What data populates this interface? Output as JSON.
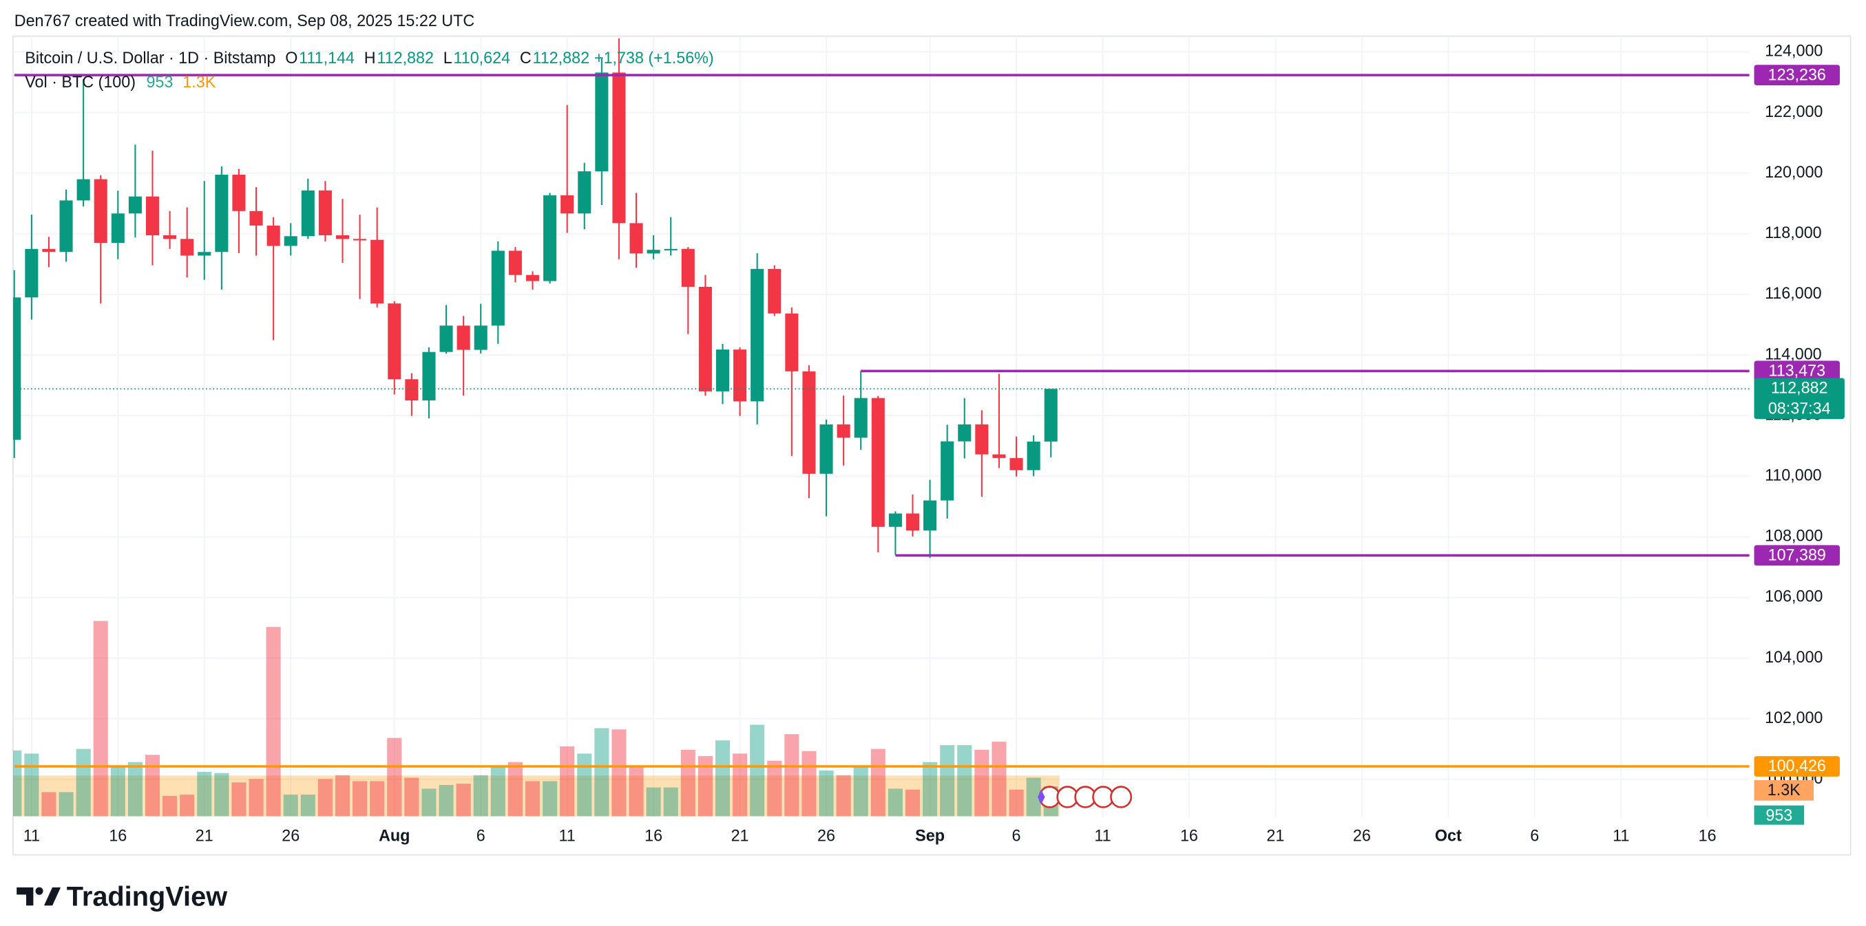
{
  "chart_data": {
    "type": "candlestick",
    "header": "Den767 created with TradingView.com, Sep 08, 2025 15:22 UTC",
    "title": "Bitcoin / U.S. Dollar · 1D · Bitstamp",
    "ohlc": [
      {
        "name": "O",
        "value": 111144,
        "label": "111,144"
      },
      {
        "name": "H",
        "value": 112882,
        "label": "112,882"
      },
      {
        "name": "L",
        "value": 110624,
        "label": "110,624"
      },
      {
        "name": "C",
        "value": 112882,
        "label": "112,882"
      }
    ],
    "change": "+1,738 (+1.56%)",
    "volume_title": "Vol · BTC (100)",
    "volume_last": {
      "value": 953,
      "label": "953"
    },
    "volume_ma": {
      "value": 1300,
      "label": "1.3K"
    },
    "brand": "TradingView",
    "up_color": "#089981",
    "down_color": "#f23645",
    "open": [
      111200,
      115900,
      117500,
      117400,
      119100,
      119800,
      117700,
      118670,
      119230,
      117950,
      117830,
      117280,
      117400,
      119950,
      118750,
      118270,
      117600,
      117920,
      119430,
      117950,
      117830,
      117800,
      115700,
      113200,
      112500,
      114100,
      114970,
      114170,
      114970,
      117440,
      116640,
      116440,
      119270,
      118670,
      120060,
      123320,
      118350,
      117350,
      117470,
      117500,
      116250,
      112800,
      114180,
      112470,
      116840,
      115370,
      113460,
      110080,
      111710,
      111270,
      112580,
      108330,
      108770,
      108210,
      109200,
      111150,
      111710,
      110720,
      110600,
      110200,
      111144
    ],
    "high": [
      116800,
      118630,
      117900,
      119460,
      123100,
      119930,
      119420,
      120940,
      120740,
      118750,
      118870,
      119740,
      120220,
      120140,
      119540,
      118550,
      118350,
      119820,
      119740,
      119150,
      118630,
      118870,
      115770,
      113400,
      114250,
      115650,
      115290,
      115690,
      117750,
      117560,
      116760,
      119350,
      122250,
      120340,
      123800,
      124450,
      119350,
      117950,
      118550,
      117560,
      116640,
      114370,
      114250,
      117360,
      116960,
      115570,
      113660,
      111870,
      112660,
      113470,
      112650,
      108840,
      109400,
      109880,
      111700,
      112580,
      112180,
      113380,
      111310,
      111350,
      112882
    ],
    "low": [
      110600,
      115170,
      116900,
      117080,
      118900,
      115700,
      117160,
      117880,
      116960,
      117500,
      116560,
      116480,
      116160,
      117360,
      117280,
      114490,
      117280,
      117830,
      117750,
      117040,
      115850,
      115570,
      112700,
      111990,
      111910,
      114050,
      112660,
      114050,
      114370,
      116400,
      116160,
      116360,
      118030,
      118150,
      118950,
      117160,
      116880,
      117160,
      117280,
      114690,
      112660,
      112380,
      111990,
      111710,
      115290,
      110670,
      109280,
      108680,
      110350,
      110870,
      107490,
      107400,
      108010,
      107300,
      108600,
      110590,
      109320,
      110270,
      109990,
      110000,
      110624
    ],
    "close": [
      115900,
      117500,
      117400,
      119100,
      119800,
      117700,
      118670,
      119230,
      117950,
      117830,
      117280,
      117400,
      119950,
      118750,
      118270,
      117600,
      117920,
      119430,
      117950,
      117830,
      117800,
      115700,
      113200,
      112500,
      114100,
      114970,
      114170,
      114970,
      117440,
      116640,
      116440,
      119270,
      118670,
      120060,
      123320,
      118350,
      117350,
      117470,
      117500,
      116250,
      112800,
      114180,
      112470,
      116840,
      115370,
      113460,
      110080,
      111710,
      111270,
      112580,
      108330,
      108770,
      108210,
      109200,
      111150,
      111710,
      110720,
      110600,
      110200,
      111144,
      112882
    ],
    "volume": [
      2100,
      2000,
      770,
      770,
      2150,
      6230,
      1580,
      1730,
      1960,
      650,
      690,
      1420,
      1380,
      1080,
      1190,
      6040,
      690,
      690,
      1190,
      1310,
      1120,
      1120,
      2500,
      1230,
      880,
      1000,
      1040,
      1310,
      1580,
      1730,
      1120,
      1120,
      2230,
      2000,
      2810,
      2770,
      1580,
      920,
      920,
      2120,
      1920,
      2420,
      2000,
      2920,
      1770,
      2620,
      2080,
      1460,
      1310,
      1580,
      2150,
      880,
      850,
      1730,
      2270,
      2270,
      2120,
      2380,
      850,
      1230,
      953
    ],
    "xlim": [
      -0.07,
      100.43
    ],
    "xticks": [
      {
        "value": 1,
        "label": "11"
      },
      {
        "value": 6,
        "label": "16"
      },
      {
        "value": 11,
        "label": "21"
      },
      {
        "value": 16,
        "label": "26"
      },
      {
        "value": 22,
        "label": "Aug"
      },
      {
        "value": 27,
        "label": "6"
      },
      {
        "value": 32,
        "label": "11"
      },
      {
        "value": 37,
        "label": "16"
      },
      {
        "value": 42,
        "label": "21"
      },
      {
        "value": 47,
        "label": "26"
      },
      {
        "value": 53,
        "label": "Sep"
      },
      {
        "value": 58,
        "label": "6"
      },
      {
        "value": 63,
        "label": "11"
      },
      {
        "value": 68,
        "label": "16"
      },
      {
        "value": 73,
        "label": "21"
      },
      {
        "value": 78,
        "label": "26"
      },
      {
        "value": 83,
        "label": "Oct"
      },
      {
        "value": 88,
        "label": "6"
      },
      {
        "value": 93,
        "label": "11"
      },
      {
        "value": 98,
        "label": "16"
      }
    ],
    "ylim": [
      98740,
      124520
    ],
    "yticks": [
      {
        "value": 100000,
        "label": "100,000"
      },
      {
        "value": 102000,
        "label": "102,000"
      },
      {
        "value": 104000,
        "label": "104,000"
      },
      {
        "value": 106000,
        "label": "106,000"
      },
      {
        "value": 108000,
        "label": "108,000"
      },
      {
        "value": 110000,
        "label": "110,000"
      },
      {
        "value": 112000,
        "label": "112,000"
      },
      {
        "value": 114000,
        "label": "114,000"
      },
      {
        "value": 116000,
        "label": "116,000"
      },
      {
        "value": 118000,
        "label": "118,000"
      },
      {
        "value": 120000,
        "label": "120,000"
      },
      {
        "value": 122000,
        "label": "122,000"
      },
      {
        "value": 124000,
        "label": "124,000"
      }
    ],
    "grid": true,
    "levels": [
      {
        "value": 123236,
        "label": "123,236",
        "color": "#9c27b0",
        "start": 0
      },
      {
        "value": 113473,
        "label": "113,473",
        "color": "#9c27b0",
        "start": 49
      },
      {
        "value": 107389,
        "label": "107,389",
        "color": "#9c27b0",
        "start": 51
      },
      {
        "value": 100426,
        "label": "100,426",
        "color": "#ff9800",
        "start": 0
      }
    ],
    "last_price": {
      "value": 112882,
      "label": "112,882",
      "countdown": "08:37:34"
    }
  }
}
